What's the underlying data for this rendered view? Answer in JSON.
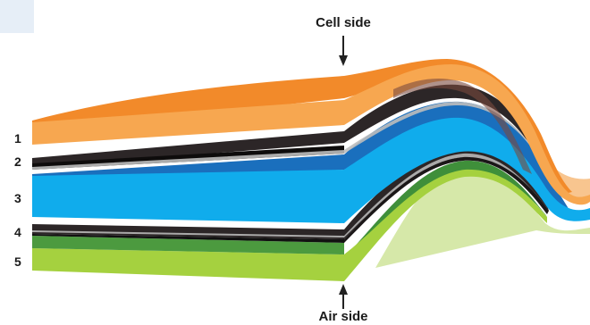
{
  "diagram": {
    "top_label": "Cell side",
    "bottom_label": "Air side",
    "layers": [
      {
        "number": "1",
        "color": "#f4862a",
        "top_color": "#f28a2f",
        "side_color": "#f7a94f"
      },
      {
        "number": "2",
        "color": "#231f20",
        "top_color": "#2a2526",
        "side_color": "#1b1718"
      },
      {
        "number": "3",
        "color": "#12aaeb",
        "top_color": "#1b73c0",
        "side_color": "#0fb0ee"
      },
      {
        "number": "4",
        "color": "#231f20",
        "top_color": "#2a2526",
        "side_color": "#1b1718"
      },
      {
        "number": "5",
        "color": "#9ccd3c",
        "top_color": "#4a9a3c",
        "side_color": "#a4d03f"
      }
    ]
  }
}
